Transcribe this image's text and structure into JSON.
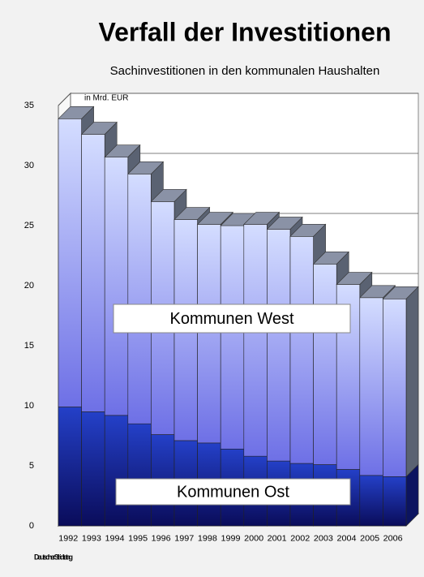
{
  "chart_data": {
    "type": "bar3d_stacked",
    "title": "Verfall der Investitionen",
    "subtitle": "Sachinvestitionen in den kommunalen Haushalten",
    "unit_label": "in Mrd. EUR",
    "logo": "Deutscher Städtetag",
    "categories": [
      "1992",
      "1993",
      "1994",
      "1995",
      "1996",
      "1997",
      "1998",
      "1999",
      "2000",
      "2001",
      "2002",
      "2003",
      "2004",
      "2005",
      "2006"
    ],
    "series": [
      {
        "name": "Kommunen Ost",
        "color": "#1a2a9c",
        "values": [
          9.9,
          9.5,
          9.2,
          8.5,
          7.6,
          7.1,
          6.9,
          6.4,
          5.8,
          5.4,
          5.2,
          5.1,
          4.7,
          4.2,
          4.1
        ]
      },
      {
        "name": "Kommunen West",
        "color": "#a8b4f4",
        "values": [
          24.0,
          23.1,
          21.5,
          20.8,
          19.4,
          18.4,
          18.2,
          18.6,
          19.3,
          19.3,
          18.9,
          16.7,
          15.4,
          14.8,
          14.8
        ]
      }
    ],
    "ylim": [
      0,
      35
    ],
    "yticks": [
      0,
      5,
      10,
      15,
      20,
      25,
      30,
      35
    ],
    "grid": true
  }
}
